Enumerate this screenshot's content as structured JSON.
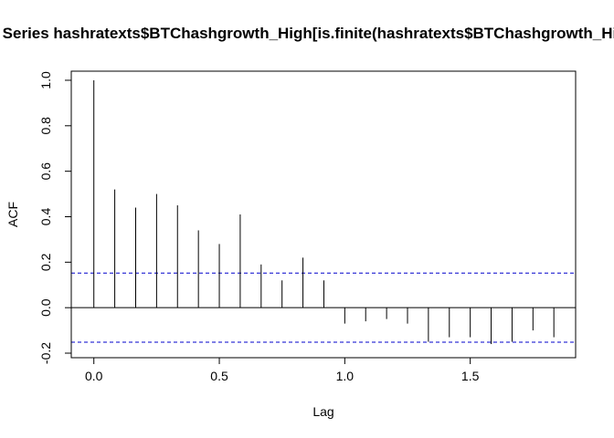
{
  "chart_data": {
    "type": "bar",
    "title": "Series  hashratexts$BTChashgrowth_High[is.finite(hashratexts$BTChashgrowth_High)]",
    "xlabel": "Lag",
    "ylabel": "ACF",
    "x": [
      0.0,
      0.0833,
      0.1667,
      0.25,
      0.3333,
      0.4167,
      0.5,
      0.5833,
      0.6667,
      0.75,
      0.8333,
      0.9167,
      1.0,
      1.0833,
      1.1667,
      1.25,
      1.3333,
      1.4167,
      1.5,
      1.5833,
      1.6667,
      1.75,
      1.8333
    ],
    "values": [
      1.0,
      0.52,
      0.44,
      0.5,
      0.45,
      0.34,
      0.28,
      0.41,
      0.19,
      0.12,
      0.22,
      0.12,
      -0.07,
      -0.06,
      -0.05,
      -0.07,
      -0.15,
      -0.13,
      -0.13,
      -0.16,
      -0.15,
      -0.1,
      -0.13
    ],
    "confidence_band": [
      -0.152,
      0.152
    ],
    "xlim": [
      -0.09,
      1.92
    ],
    "ylim": [
      -0.22,
      1.04
    ],
    "xticks": [
      0.0,
      0.5,
      1.0,
      1.5
    ],
    "xtick_labels": [
      "0.0",
      "0.5",
      "1.0",
      "1.5"
    ],
    "yticks": [
      -0.2,
      0.0,
      0.2,
      0.4,
      0.6,
      0.8,
      1.0
    ],
    "ytick_labels": [
      "-0.2",
      "0.0",
      "0.2",
      "0.4",
      "0.6",
      "0.8",
      "1.0"
    ],
    "grid": false,
    "colors": {
      "spikes": "#000000",
      "confidence": "#0000cc",
      "zero_line": "#000000"
    }
  }
}
